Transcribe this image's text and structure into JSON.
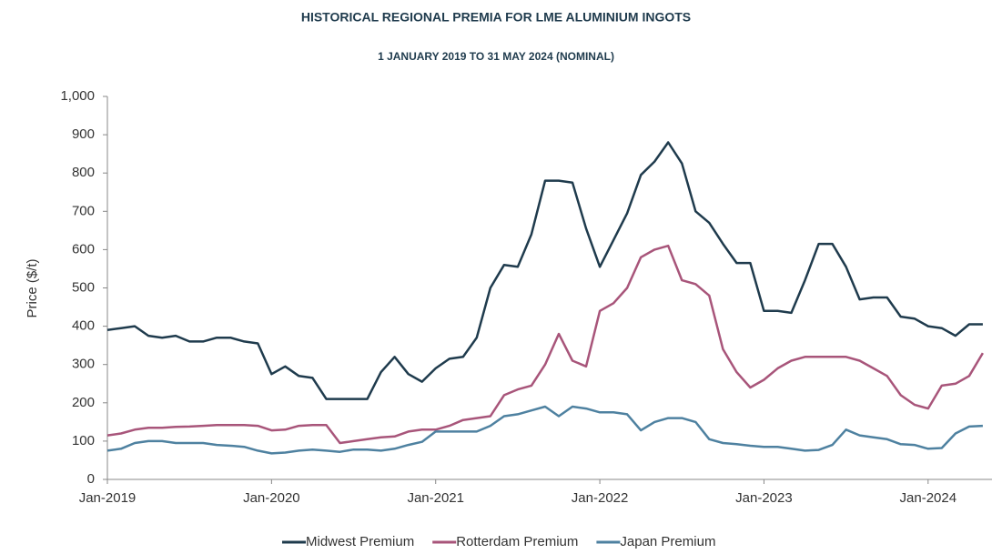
{
  "chart_data": {
    "type": "line",
    "title": "HISTORICAL REGIONAL PREMIA FOR LME ALUMINIUM INGOTS",
    "subtitle": "1 JANUARY 2019 TO 31 MAY 2024 (NOMINAL)",
    "y_label": "Price ($/t)",
    "categories": [
      "Jan-2019",
      null,
      null,
      null,
      null,
      null,
      null,
      null,
      null,
      null,
      null,
      null,
      "Jan-2020",
      null,
      null,
      null,
      null,
      null,
      null,
      null,
      null,
      null,
      null,
      null,
      "Jan-2021",
      null,
      null,
      null,
      null,
      null,
      null,
      null,
      null,
      null,
      null,
      null,
      "Jan-2022",
      null,
      null,
      null,
      null,
      null,
      null,
      null,
      null,
      null,
      null,
      null,
      "Jan-2023",
      null,
      null,
      null,
      null,
      null,
      null,
      null,
      null,
      null,
      null,
      null,
      "Jan-2024",
      null,
      null,
      null,
      null
    ],
    "series": [
      {
        "name": "Midwest Premium",
        "color": "#1f3b4d",
        "values": [
          390,
          395,
          400,
          375,
          370,
          375,
          360,
          360,
          370,
          370,
          360,
          355,
          275,
          295,
          270,
          265,
          210,
          210,
          210,
          210,
          280,
          320,
          275,
          255,
          290,
          315,
          320,
          370,
          500,
          560,
          555,
          640,
          780,
          780,
          775,
          655,
          555,
          625,
          695,
          795,
          830,
          880,
          825,
          700,
          670,
          615,
          565,
          565,
          440,
          440,
          435,
          520,
          615,
          615,
          555,
          470,
          475,
          475,
          425,
          420,
          400,
          395,
          375,
          405,
          405
        ]
      },
      {
        "name": "Rotterdam Premium",
        "color": "#a8557a",
        "values": [
          115,
          120,
          130,
          135,
          135,
          137,
          138,
          140,
          142,
          142,
          142,
          140,
          128,
          130,
          140,
          142,
          142,
          95,
          100,
          105,
          110,
          112,
          125,
          130,
          130,
          140,
          155,
          160,
          165,
          220,
          235,
          245,
          300,
          380,
          310,
          295,
          440,
          460,
          500,
          580,
          600,
          610,
          520,
          510,
          480,
          340,
          280,
          240,
          260,
          290,
          310,
          320,
          320,
          320,
          320,
          310,
          290,
          270,
          220,
          195,
          185,
          245,
          250,
          270,
          330
        ]
      },
      {
        "name": "Japan Premium",
        "color": "#4e81a0",
        "values": [
          75,
          80,
          95,
          100,
          100,
          95,
          95,
          95,
          90,
          88,
          85,
          75,
          68,
          70,
          75,
          78,
          75,
          72,
          78,
          78,
          75,
          80,
          90,
          98,
          125,
          125,
          125,
          125,
          140,
          165,
          170,
          180,
          190,
          165,
          190,
          185,
          175,
          175,
          170,
          128,
          150,
          160,
          160,
          150,
          105,
          95,
          92,
          88,
          85,
          85,
          80,
          75,
          77,
          90,
          130,
          115,
          110,
          105,
          92,
          90,
          80,
          82,
          120,
          138,
          140
        ]
      }
    ],
    "ylim": [
      0,
      1000
    ],
    "yticks": [
      0,
      100,
      200,
      300,
      400,
      500,
      600,
      700,
      800,
      900,
      {
        "value": 1000,
        "label": "1,000"
      }
    ],
    "legend": "bottom"
  }
}
